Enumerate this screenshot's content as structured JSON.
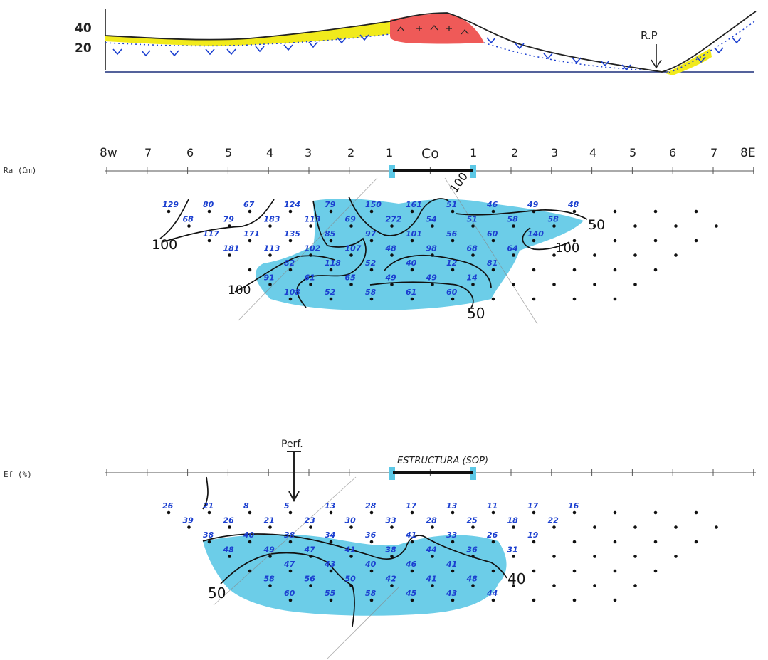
{
  "profile": {
    "ticks": [
      "40",
      "20"
    ],
    "rp_label": "R.P"
  },
  "section_ra": {
    "label": "Ra (Ωm)",
    "axis_labels": [
      "8w",
      "7",
      "6",
      "5",
      "4",
      "3",
      "2",
      "1",
      "Co",
      "1",
      "2",
      "3",
      "4",
      "5",
      "6",
      "7",
      "8E"
    ],
    "contour_labels": [
      "100",
      "100",
      "100",
      "50",
      "50",
      "100"
    ],
    "rows": [
      [
        "129",
        "80",
        "67",
        "124",
        "79",
        "150",
        "161",
        "51",
        "46",
        "49",
        "48"
      ],
      [
        "68",
        "79",
        "183",
        "113",
        "69",
        "272",
        "54",
        "51",
        "58",
        "58"
      ],
      [
        "117",
        "171",
        "135",
        "85",
        "97",
        "101",
        "56",
        "60",
        "140"
      ],
      [
        "181",
        "113",
        "102",
        "107",
        "48",
        "98",
        "68",
        "64"
      ],
      [
        "82",
        "118",
        "52",
        "40",
        "12",
        "81"
      ],
      [
        "91",
        "61",
        "65",
        "49",
        "49",
        "14"
      ],
      [
        "108",
        "52",
        "58",
        "61",
        "60"
      ]
    ]
  },
  "section_ef": {
    "label": "Ef (%)",
    "perf_label": "Perf.",
    "structure_label": "ESTRUCTURA (SOP)",
    "contour_labels": [
      "50",
      "40"
    ],
    "rows": [
      [
        "26",
        "21",
        "8",
        "5",
        "13",
        "28",
        "17",
        "13",
        "11",
        "17",
        "16"
      ],
      [
        "39",
        "26",
        "21",
        "23",
        "30",
        "33",
        "28",
        "25",
        "18",
        "22"
      ],
      [
        "38",
        "40",
        "38",
        "34",
        "36",
        "41",
        "33",
        "26",
        "19"
      ],
      [
        "48",
        "49",
        "47",
        "41",
        "38",
        "44",
        "36",
        "31"
      ],
      [
        "47",
        "43",
        "40",
        "46",
        "41"
      ],
      [
        "58",
        "56",
        "50",
        "42",
        "41",
        "48"
      ],
      [
        "60",
        "55",
        "58",
        "45",
        "43",
        "44"
      ]
    ]
  }
}
